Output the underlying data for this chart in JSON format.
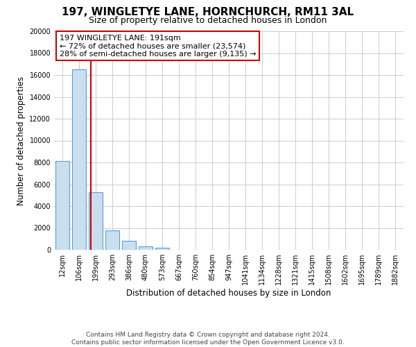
{
  "title": "197, WINGLETYE LANE, HORNCHURCH, RM11 3AL",
  "subtitle": "Size of property relative to detached houses in London",
  "xlabel": "Distribution of detached houses by size in London",
  "ylabel": "Number of detached properties",
  "bar_labels": [
    "12sqm",
    "106sqm",
    "199sqm",
    "293sqm",
    "386sqm",
    "480sqm",
    "573sqm",
    "667sqm",
    "760sqm",
    "854sqm",
    "947sqm",
    "1041sqm",
    "1134sqm",
    "1228sqm",
    "1321sqm",
    "1415sqm",
    "1508sqm",
    "1602sqm",
    "1695sqm",
    "1789sqm",
    "1882sqm"
  ],
  "bar_values": [
    8100,
    16500,
    5300,
    1800,
    800,
    300,
    200,
    0,
    0,
    0,
    0,
    0,
    0,
    0,
    0,
    0,
    0,
    0,
    0,
    0,
    0
  ],
  "bar_color": "#c9dff0",
  "bar_edge_color": "#5b9bd5",
  "marker_color": "#cc0000",
  "annotation_line1": "197 WINGLETYE LANE: 191sqm",
  "annotation_line2": "← 72% of detached houses are smaller (23,574)",
  "annotation_line3": "28% of semi-detached houses are larger (9,135) →",
  "annotation_box_color": "#ffffff",
  "annotation_box_edge": "#cc0000",
  "ylim": [
    0,
    20000
  ],
  "yticks": [
    0,
    2000,
    4000,
    6000,
    8000,
    10000,
    12000,
    14000,
    16000,
    18000,
    20000
  ],
  "grid_color": "#cccccc",
  "background_color": "#ffffff",
  "footer_line1": "Contains HM Land Registry data © Crown copyright and database right 2024.",
  "footer_line2": "Contains public sector information licensed under the Open Government Licence v3.0.",
  "title_fontsize": 11,
  "subtitle_fontsize": 9,
  "axis_label_fontsize": 8.5,
  "tick_fontsize": 7,
  "annotation_fontsize": 8,
  "footer_fontsize": 6.5
}
